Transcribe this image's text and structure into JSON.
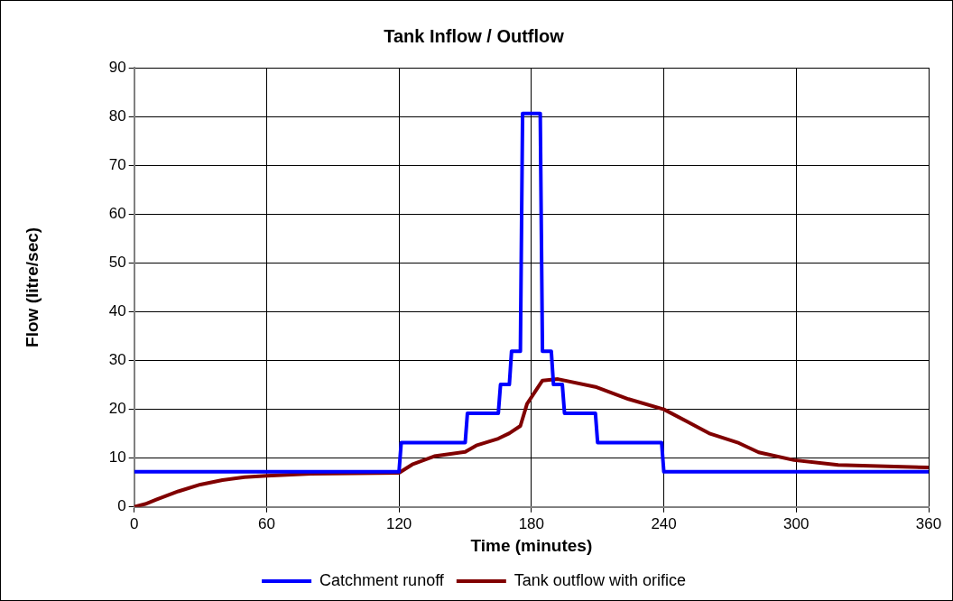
{
  "chart_data": {
    "type": "line",
    "title": "Tank Inflow / Outflow",
    "xlabel": "Time (minutes)",
    "ylabel": "Flow (litre/sec)",
    "series": [
      {
        "name": "Catchment runoff",
        "color": "#0000ff",
        "x": [
          0,
          120,
          121,
          150,
          151,
          165,
          166,
          170,
          171,
          175,
          176,
          184,
          185,
          189,
          190,
          194,
          195,
          209,
          210,
          239,
          240,
          360
        ],
        "values": [
          7.2,
          7.2,
          13.2,
          13.2,
          19.2,
          19.2,
          25.1,
          25.1,
          31.9,
          31.9,
          80.6,
          80.6,
          31.9,
          31.9,
          25.1,
          25.1,
          19.2,
          19.2,
          13.2,
          13.2,
          7.2,
          7.2
        ]
      },
      {
        "name": "Tank outflow with orifice",
        "color": "#800000",
        "x": [
          0,
          5,
          10,
          20,
          30,
          40,
          50,
          60,
          80,
          100,
          120,
          126,
          136,
          150,
          155,
          165,
          170,
          175,
          178,
          185,
          192,
          209,
          224,
          240,
          261,
          274,
          283,
          299,
          319,
          360
        ],
        "values": [
          0,
          0.6,
          1.5,
          3.2,
          4.6,
          5.5,
          6.1,
          6.4,
          6.8,
          6.9,
          7.0,
          8.7,
          10.4,
          11.3,
          12.6,
          14.0,
          15.1,
          16.6,
          21.1,
          25.9,
          26.2,
          24.6,
          22.1,
          20.0,
          15.0,
          13.1,
          11.2,
          9.6,
          8.6,
          8.1
        ]
      }
    ],
    "xlim": [
      0,
      360
    ],
    "xticks": [
      0,
      60,
      120,
      180,
      240,
      300,
      360
    ],
    "ylim": [
      0,
      90
    ],
    "yticks": [
      0,
      10,
      20,
      30,
      40,
      50,
      60,
      70,
      80,
      90
    ],
    "grid": true,
    "legend": "bottom",
    "marker": "none",
    "line_style": "solid"
  }
}
